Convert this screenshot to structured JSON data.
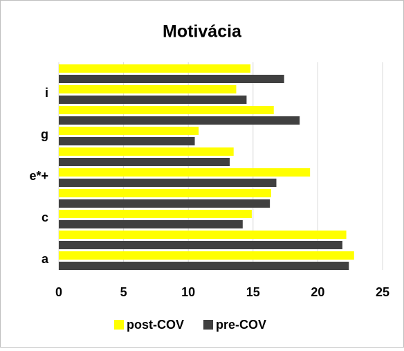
{
  "chart_data": {
    "type": "hbar",
    "title": "Motivácia",
    "categories": [
      "a",
      null,
      "c",
      null,
      "e*+",
      null,
      "g",
      null,
      "i",
      null
    ],
    "series": [
      {
        "name": "post-COV",
        "color": "#ffff00",
        "values": [
          22.8,
          22.2,
          14.9,
          16.4,
          19.4,
          13.5,
          10.8,
          16.6,
          13.7,
          14.8
        ]
      },
      {
        "name": "pre-COV",
        "color": "#404040",
        "values": [
          22.4,
          21.9,
          14.2,
          16.3,
          16.8,
          13.2,
          10.5,
          18.6,
          14.5,
          17.4
        ]
      }
    ],
    "xlim": [
      0,
      25
    ],
    "xticks": [
      0,
      5,
      10,
      15,
      20,
      25
    ],
    "grid": true,
    "legend": "bottom"
  }
}
